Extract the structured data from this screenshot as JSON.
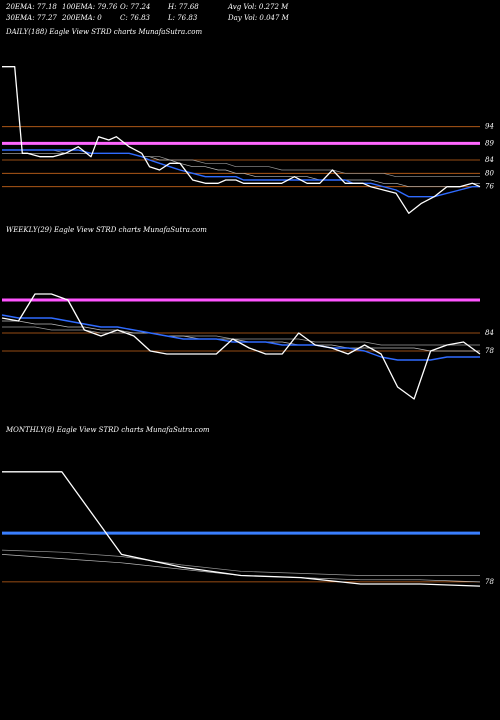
{
  "header": {
    "row1": [
      "20EMA: 77.18",
      "100EMA: 79.76",
      "O: 77.24",
      "H: 77.68",
      "Avg Vol: 0.272  M"
    ],
    "row2": [
      "30EMA: 77.27",
      "200EMA: 0",
      "C: 76.83",
      "L: 76.83",
      "Day Vol: 0.047  M"
    ]
  },
  "chart_data": [
    {
      "type": "line",
      "title": "DAILY(188) Eagle   View  STRD charts MunafaSutra.com",
      "ylim": [
        66,
        120
      ],
      "price_levels": [
        94,
        89,
        84,
        80,
        76
      ],
      "ticks": [
        "94",
        "89",
        "84",
        "80",
        "76"
      ],
      "reference_line": 89,
      "x": [
        0,
        5,
        8,
        10,
        15,
        20,
        25,
        30,
        35,
        38,
        42,
        45,
        50,
        55,
        58,
        62,
        66,
        70,
        75,
        80,
        85,
        88,
        92,
        95,
        100,
        105,
        110,
        115,
        120,
        125,
        130,
        135,
        138,
        142,
        145,
        150,
        155,
        160,
        165,
        170,
        175,
        180,
        185,
        188
      ],
      "series": [
        {
          "values": [
            112,
            112,
            86,
            86,
            85,
            85,
            86,
            88,
            85,
            91,
            90,
            91,
            88,
            86,
            82,
            81,
            83,
            83,
            78,
            77,
            77,
            78,
            78,
            77,
            77,
            77,
            77,
            79,
            77,
            77,
            81,
            77,
            77,
            77,
            76,
            75,
            74,
            68,
            71,
            73,
            76,
            76,
            77,
            76
          ]
        },
        {
          "values": [
            87,
            87,
            87,
            87,
            87,
            87,
            87,
            87,
            86,
            86,
            86,
            86,
            86,
            85,
            84,
            83,
            82,
            81,
            80,
            79,
            79,
            79,
            79,
            78,
            78,
            78,
            78,
            78,
            78,
            78,
            78,
            78,
            77,
            77,
            77,
            76,
            75,
            73,
            73,
            73,
            74,
            75,
            76,
            76
          ]
        },
        {
          "values": [
            86,
            86,
            86,
            86,
            86,
            86,
            86,
            86,
            86,
            86,
            86,
            86,
            86,
            85,
            85,
            84,
            84,
            83,
            82,
            82,
            81,
            81,
            80,
            80,
            79,
            79,
            79,
            79,
            79,
            78,
            78,
            78,
            78,
            78,
            78,
            77,
            77,
            76,
            76,
            76,
            76,
            76,
            77,
            77
          ]
        },
        {
          "values": [
            87,
            87,
            87,
            87,
            87,
            87,
            86,
            86,
            86,
            86,
            86,
            86,
            86,
            85,
            85,
            85,
            84,
            84,
            84,
            83,
            83,
            83,
            82,
            82,
            82,
            82,
            81,
            81,
            81,
            81,
            81,
            80,
            80,
            80,
            80,
            80,
            79,
            79,
            79,
            79,
            79,
            79,
            79,
            79
          ]
        }
      ]
    },
    {
      "type": "line",
      "title": "WEEKLY(29) Eagle   View  STRD charts MunafaSutra.com",
      "ylim": [
        55,
        115
      ],
      "price_levels": [
        84,
        78
      ],
      "ticks": [
        "84",
        "78"
      ],
      "reference_line": 95,
      "x": [
        0,
        1,
        2,
        3,
        4,
        5,
        6,
        7,
        8,
        9,
        10,
        11,
        12,
        13,
        14,
        15,
        16,
        17,
        18,
        19,
        20,
        21,
        22,
        23,
        24,
        25,
        26,
        27,
        28,
        29
      ],
      "series": [
        {
          "values": [
            89,
            88,
            97,
            97,
            95,
            85,
            83,
            85,
            83,
            78,
            77,
            77,
            77,
            77,
            82,
            79,
            77,
            77,
            84,
            80,
            79,
            77,
            80,
            77,
            66,
            62,
            78,
            80,
            81,
            77
          ]
        },
        {
          "values": [
            90,
            89,
            89,
            89,
            88,
            87,
            86,
            86,
            85,
            84,
            83,
            82,
            82,
            82,
            81,
            81,
            81,
            80,
            80,
            80,
            79,
            79,
            78,
            76,
            75,
            75,
            75,
            76,
            76,
            76
          ]
        },
        {
          "values": [
            88,
            88,
            87,
            87,
            86,
            86,
            85,
            85,
            84,
            84,
            83,
            83,
            82,
            82,
            82,
            81,
            81,
            81,
            80,
            80,
            80,
            79,
            79,
            79,
            79,
            79,
            78,
            78,
            78,
            78
          ]
        },
        {
          "values": [
            86,
            86,
            86,
            85,
            85,
            85,
            84,
            84,
            84,
            84,
            83,
            83,
            83,
            83,
            82,
            82,
            82,
            82,
            82,
            81,
            81,
            81,
            81,
            80,
            80,
            80,
            80,
            80,
            80,
            80
          ]
        }
      ]
    },
    {
      "type": "line",
      "title": "MONTHLY(8) Eagle   View  STRD charts MunafaSutra.com",
      "ylim": [
        60,
        145
      ],
      "price_levels": [
        78
      ],
      "ticks": [
        "78"
      ],
      "reference_line": 101,
      "x": [
        0,
        1,
        2,
        3,
        4,
        5,
        6,
        7,
        8
      ],
      "series": [
        {
          "values": [
            130,
            130,
            91,
            85,
            81,
            80,
            77,
            77,
            76
          ]
        },
        {
          "values": [
            91,
            89,
            87,
            84,
            81,
            80,
            79,
            79,
            78
          ]
        },
        {
          "values": [
            93,
            92,
            90,
            86,
            83,
            82,
            81,
            81,
            81
          ]
        }
      ]
    }
  ]
}
